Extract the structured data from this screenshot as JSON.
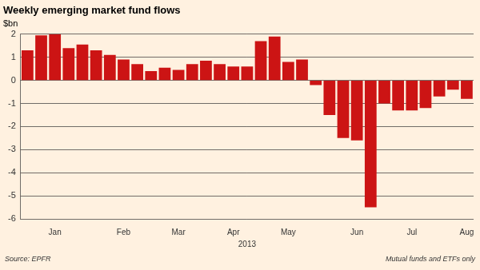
{
  "chart_data": {
    "type": "bar",
    "title": "Weekly emerging market fund flows",
    "subtitle": "$bn",
    "x_label": "2013",
    "source": "Source: EPFR",
    "note": "Mutual funds and ETFs only",
    "categories": [
      null,
      null,
      "Jan",
      null,
      null,
      null,
      null,
      "Feb",
      null,
      null,
      null,
      "Mar",
      null,
      null,
      null,
      "Apr",
      null,
      null,
      null,
      "May",
      null,
      null,
      null,
      null,
      "Jun",
      null,
      null,
      null,
      "Jul",
      null,
      null,
      null,
      "Aug"
    ],
    "values": [
      1.3,
      1.95,
      2.0,
      1.4,
      1.55,
      1.3,
      1.1,
      0.9,
      0.7,
      0.4,
      0.55,
      0.45,
      0.7,
      0.85,
      0.7,
      0.6,
      0.6,
      1.7,
      1.9,
      0.8,
      0.9,
      -0.2,
      -1.5,
      -2.5,
      -2.6,
      -5.5,
      -1.0,
      -1.3,
      -1.3,
      -1.2,
      -0.7,
      -0.4,
      -0.8
    ],
    "color": "#cc1414",
    "ylim": [
      -6,
      2
    ],
    "yticks": [
      -6,
      -5,
      -4,
      -3,
      -2,
      -1,
      0,
      1,
      2
    ],
    "grid": true
  }
}
